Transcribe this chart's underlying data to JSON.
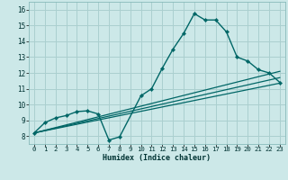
{
  "title": "",
  "xlabel": "Humidex (Indice chaleur)",
  "bg_color": "#cce8e8",
  "grid_color": "#aacfcf",
  "line_color": "#006666",
  "xlim": [
    -0.5,
    23.5
  ],
  "ylim": [
    7.5,
    16.5
  ],
  "xticks": [
    0,
    1,
    2,
    3,
    4,
    5,
    6,
    7,
    8,
    9,
    10,
    11,
    12,
    13,
    14,
    15,
    16,
    17,
    18,
    19,
    20,
    21,
    22,
    23
  ],
  "yticks": [
    8,
    9,
    10,
    11,
    12,
    13,
    14,
    15,
    16
  ],
  "line1_x": [
    0,
    1,
    2,
    3,
    4,
    5,
    6,
    7,
    8,
    10,
    11,
    12,
    13,
    14,
    15,
    16,
    17,
    18,
    19,
    20,
    21,
    22,
    23
  ],
  "line1_y": [
    8.2,
    8.85,
    9.15,
    9.3,
    9.55,
    9.6,
    9.4,
    7.75,
    7.95,
    10.55,
    11.0,
    12.3,
    13.5,
    14.5,
    15.75,
    15.35,
    15.35,
    14.6,
    13.0,
    12.75,
    12.2,
    12.0,
    11.4
  ],
  "line2_x": [
    0,
    23
  ],
  "line2_y": [
    8.2,
    11.35
  ],
  "line3_x": [
    0,
    23
  ],
  "line3_y": [
    8.2,
    11.7
  ],
  "line4_x": [
    0,
    23
  ],
  "line4_y": [
    8.2,
    12.1
  ]
}
